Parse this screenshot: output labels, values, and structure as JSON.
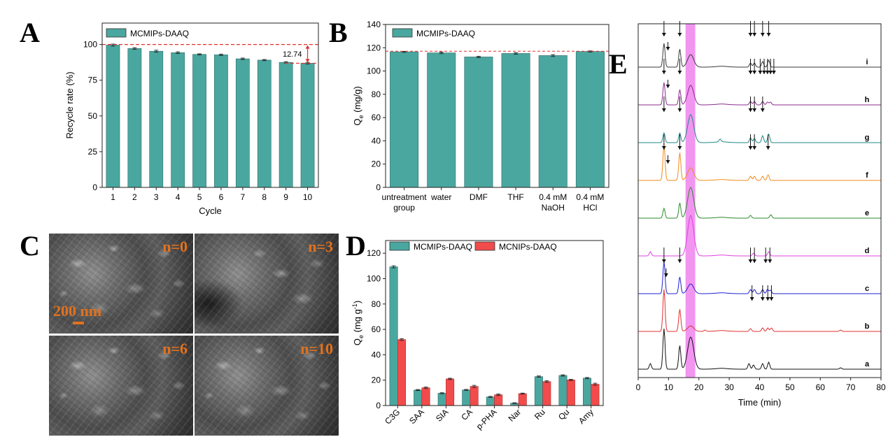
{
  "colors": {
    "teal": "#4aa79f",
    "red": "#f24b4b",
    "refline": "#e0302f",
    "orange_label": "#e2711d",
    "highlight": "#ee82ee",
    "traces": {
      "i": "#3a3a3a",
      "h": "#8a2b8c",
      "g": "#1f8a85",
      "f": "#f08a1a",
      "e": "#2a8a2a",
      "d": "#e040e0",
      "c": "#2020d0",
      "b": "#e03030",
      "a": "#101010"
    }
  },
  "panels": {
    "A": {
      "letter": "A"
    },
    "B": {
      "letter": "B"
    },
    "C": {
      "letter": "C"
    },
    "D": {
      "letter": "D"
    },
    "E": {
      "letter": "E"
    }
  },
  "sem": {
    "labels": [
      "n=0",
      "n=3",
      "n=6",
      "n=10"
    ],
    "scale_label": "200 nm"
  },
  "chart_data": [
    {
      "id": "A",
      "type": "bar",
      "legend": [
        "MCMIPs-DAAQ"
      ],
      "categories": [
        "1",
        "2",
        "3",
        "4",
        "5",
        "6",
        "7",
        "8",
        "9",
        "10"
      ],
      "values": [
        99.6,
        97.2,
        95.3,
        94.3,
        93.1,
        92.8,
        90.0,
        89.1,
        87.5,
        86.9
      ],
      "errors": [
        0.7,
        0.6,
        0.7,
        0.6,
        0.4,
        0.5,
        0.5,
        0.4,
        0.5,
        0.6
      ],
      "xlabel": "Cycle",
      "ylabel": "Recycle rate (%)",
      "ylim": [
        0,
        115
      ],
      "yticks": [
        0,
        25,
        50,
        75,
        100
      ],
      "reference_line": 100,
      "annotation": "12.74"
    },
    {
      "id": "B",
      "type": "bar",
      "legend": [
        "MCMIPs-DAAQ"
      ],
      "categories": [
        [
          "untreatment",
          "group"
        ],
        [
          "water"
        ],
        [
          "DMF"
        ],
        [
          "THF"
        ],
        [
          "0.4 mM",
          "NaOH"
        ],
        [
          "0.4 mM",
          "HCl"
        ]
      ],
      "values": [
        116.5,
        115.6,
        112.1,
        115.1,
        113.3,
        116.8
      ],
      "errors": [
        0.4,
        0.7,
        0.6,
        0.7,
        0.8,
        0.5
      ],
      "xlabel": "",
      "ylabel_main": "Q",
      "ylabel_sub": "e",
      "ylabel_rest": " (mg/g)",
      "ylim": [
        0,
        140
      ],
      "yticks": [
        0,
        20,
        40,
        60,
        80,
        100,
        120,
        140
      ],
      "reference_line": 117
    },
    {
      "id": "D",
      "type": "bar",
      "categories": [
        "C3G",
        "SAA",
        "SIA",
        "CA",
        "p-PHA",
        "Nar",
        "Ru",
        "Qu",
        "Amy"
      ],
      "series": [
        {
          "name": "MCMIPs-DAAQ",
          "values": [
            109.3,
            12.2,
            9.7,
            12.3,
            6.8,
            1.9,
            22.8,
            23.7,
            21.6
          ],
          "errors": [
            0.8,
            0.4,
            0.4,
            0.4,
            0.4,
            0.3,
            0.5,
            0.5,
            0.5
          ]
        },
        {
          "name": "MCNIPs-DAAQ",
          "values": [
            52.0,
            14.0,
            21.0,
            15.1,
            8.5,
            9.4,
            18.9,
            20.2,
            16.8
          ],
          "errors": [
            0.7,
            0.6,
            0.5,
            0.8,
            0.6,
            0.4,
            0.6,
            0.5,
            0.8
          ]
        }
      ],
      "ylabel_main": "Q",
      "ylabel_sub": "e",
      "ylabel_rest": " (mg g",
      "ylabel_sup": "-1",
      "ylabel_close": ")",
      "ylim": [
        0,
        130
      ],
      "yticks": [
        0,
        20,
        40,
        60,
        80,
        100,
        120
      ]
    },
    {
      "id": "E",
      "type": "line",
      "xlabel": "Time (min)",
      "xlim": [
        0,
        80
      ],
      "xticks": [
        0,
        10,
        20,
        30,
        40,
        50,
        60,
        70,
        80
      ],
      "highlight_range": [
        15.6,
        18.8
      ],
      "traces": [
        {
          "label": "i",
          "arrows_down": [
            8.5,
            13.7,
            37.0,
            38.3,
            41.0,
            43.0
          ],
          "arrows_small": [
            9.8
          ]
        },
        {
          "label": "h",
          "arrows_down": [
            8.5,
            13.7,
            37.0,
            38.3,
            40.2,
            41.5,
            42.6,
            43.6,
            44.7
          ],
          "arrows_small": [
            9.8
          ]
        },
        {
          "label": "g",
          "arrows_down": [
            8.5,
            13.7,
            37.0,
            38.3,
            41.0
          ],
          "arrows_small": []
        },
        {
          "label": "f",
          "arrows_down": [
            8.5,
            13.7,
            37.0,
            38.3,
            42.8
          ],
          "arrows_small": [
            9.8
          ]
        },
        {
          "label": "e",
          "arrows_down": [],
          "arrows_small": []
        },
        {
          "label": "d",
          "arrows_down": [],
          "arrows_small": []
        },
        {
          "label": "c",
          "arrows_down": [
            8.5,
            13.7,
            37.0,
            38.3,
            42.0,
            43.4
          ],
          "arrows_small": [
            9.2
          ]
        },
        {
          "label": "b",
          "arrows_down": [
            37.5,
            41.0,
            42.7,
            43.9
          ],
          "arrows_small": []
        },
        {
          "label": "a",
          "arrows_down": [],
          "arrows_small": []
        }
      ]
    }
  ]
}
